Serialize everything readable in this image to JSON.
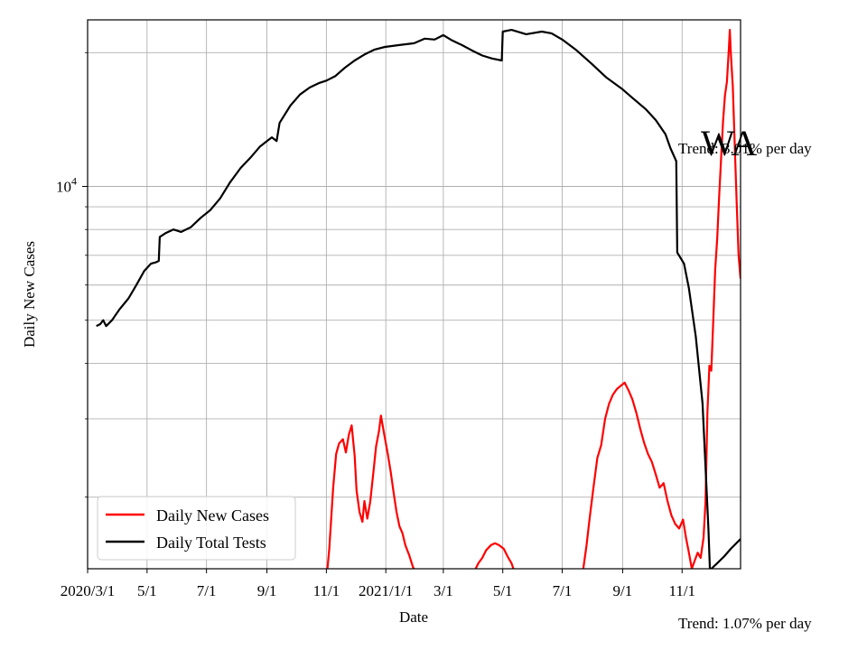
{
  "chart_data": {
    "type": "line",
    "title": "WA",
    "xlabel": "Date",
    "ylabel": "Daily New Cases",
    "yscale": "log",
    "ylim": [
      1380,
      23700
    ],
    "grid": true,
    "legend_position": "lower-left",
    "x_start": "2020-03-01",
    "x_end": "2021-12-31",
    "x_tick_labels": [
      {
        "date": "2020-03-01",
        "label": "2020/3/1"
      },
      {
        "date": "2020-05-01",
        "label": "5/1"
      },
      {
        "date": "2020-07-01",
        "label": "7/1"
      },
      {
        "date": "2020-09-01",
        "label": "9/1"
      },
      {
        "date": "2020-11-01",
        "label": "11/1"
      },
      {
        "date": "2021-01-01",
        "label": "2021/1/1"
      },
      {
        "date": "2021-03-01",
        "label": "3/1"
      },
      {
        "date": "2021-05-01",
        "label": "5/1"
      },
      {
        "date": "2021-07-01",
        "label": "7/1"
      },
      {
        "date": "2021-09-01",
        "label": "9/1"
      },
      {
        "date": "2021-11-01",
        "label": "11/1"
      }
    ],
    "y_tick_labels": [
      {
        "value": 10000,
        "label": "10^4"
      }
    ],
    "y_minor_ticks": [
      2000,
      3000,
      4000,
      5000,
      6000,
      7000,
      8000,
      9000,
      20000
    ],
    "series": [
      {
        "name": "Daily New Cases",
        "color": "#ff0000",
        "points": [
          [
            "2020-11-01",
            1300
          ],
          [
            "2020-11-04",
            1530
          ],
          [
            "2020-11-08",
            2100
          ],
          [
            "2020-11-11",
            2500
          ],
          [
            "2020-11-14",
            2640
          ],
          [
            "2020-11-18",
            2700
          ],
          [
            "2020-11-21",
            2520
          ],
          [
            "2020-11-24",
            2760
          ],
          [
            "2020-11-27",
            2900
          ],
          [
            "2020-11-30",
            2480
          ],
          [
            "2020-12-02",
            2070
          ],
          [
            "2020-12-05",
            1850
          ],
          [
            "2020-12-08",
            1760
          ],
          [
            "2020-12-10",
            1960
          ],
          [
            "2020-12-13",
            1790
          ],
          [
            "2020-12-16",
            1950
          ],
          [
            "2020-12-19",
            2250
          ],
          [
            "2020-12-22",
            2600
          ],
          [
            "2020-12-25",
            2820
          ],
          [
            "2020-12-27",
            3050
          ],
          [
            "2020-12-30",
            2800
          ],
          [
            "2021-01-03",
            2500
          ],
          [
            "2021-01-06",
            2280
          ],
          [
            "2021-01-09",
            2050
          ],
          [
            "2021-01-12",
            1850
          ],
          [
            "2021-01-15",
            1720
          ],
          [
            "2021-01-18",
            1660
          ],
          [
            "2021-01-21",
            1560
          ],
          [
            "2021-01-25",
            1480
          ],
          [
            "2021-01-29",
            1390
          ],
          [
            "2021-02-02",
            1350
          ],
          [
            "2021-04-01",
            1350
          ],
          [
            "2021-04-06",
            1420
          ],
          [
            "2021-04-10",
            1460
          ],
          [
            "2021-04-14",
            1520
          ],
          [
            "2021-04-19",
            1560
          ],
          [
            "2021-04-23",
            1575
          ],
          [
            "2021-04-27",
            1560
          ],
          [
            "2021-05-02",
            1530
          ],
          [
            "2021-05-06",
            1470
          ],
          [
            "2021-05-10",
            1420
          ],
          [
            "2021-05-13",
            1360
          ],
          [
            "2021-07-22",
            1350
          ],
          [
            "2021-07-26",
            1560
          ],
          [
            "2021-07-29",
            1780
          ],
          [
            "2021-08-02",
            2100
          ],
          [
            "2021-08-06",
            2450
          ],
          [
            "2021-08-10",
            2620
          ],
          [
            "2021-08-14",
            3000
          ],
          [
            "2021-08-18",
            3240
          ],
          [
            "2021-08-22",
            3400
          ],
          [
            "2021-08-26",
            3500
          ],
          [
            "2021-08-30",
            3560
          ],
          [
            "2021-09-03",
            3620
          ],
          [
            "2021-09-07",
            3480
          ],
          [
            "2021-09-11",
            3320
          ],
          [
            "2021-09-15",
            3100
          ],
          [
            "2021-09-19",
            2850
          ],
          [
            "2021-09-23",
            2650
          ],
          [
            "2021-09-27",
            2500
          ],
          [
            "2021-10-01",
            2400
          ],
          [
            "2021-10-05",
            2250
          ],
          [
            "2021-10-09",
            2100
          ],
          [
            "2021-10-13",
            2150
          ],
          [
            "2021-10-17",
            1960
          ],
          [
            "2021-10-21",
            1820
          ],
          [
            "2021-10-25",
            1740
          ],
          [
            "2021-10-29",
            1700
          ],
          [
            "2021-11-02",
            1780
          ],
          [
            "2021-11-05",
            1620
          ],
          [
            "2021-11-08",
            1500
          ],
          [
            "2021-11-11",
            1380
          ],
          [
            "2021-11-14",
            1440
          ],
          [
            "2021-11-17",
            1500
          ],
          [
            "2021-11-20",
            1460
          ],
          [
            "2021-11-23",
            1620
          ],
          [
            "2021-11-25",
            1950
          ],
          [
            "2021-11-27",
            3100
          ],
          [
            "2021-11-29",
            3950
          ],
          [
            "2021-12-01",
            3850
          ],
          [
            "2021-12-03",
            5000
          ],
          [
            "2021-12-05",
            6500
          ],
          [
            "2021-12-07",
            7600
          ],
          [
            "2021-12-09",
            9500
          ],
          [
            "2021-12-11",
            11500
          ],
          [
            "2021-12-13",
            14000
          ],
          [
            "2021-12-15",
            16000
          ],
          [
            "2021-12-17",
            17200
          ],
          [
            "2021-12-19",
            20500
          ],
          [
            "2021-12-20",
            22500
          ],
          [
            "2021-12-21",
            20000
          ],
          [
            "2021-12-23",
            16800
          ],
          [
            "2021-12-25",
            12500
          ],
          [
            "2021-12-27",
            9200
          ],
          [
            "2021-12-29",
            7000
          ],
          [
            "2021-12-31",
            6200
          ]
        ]
      },
      {
        "name": "Daily Total Tests",
        "color": "#000000",
        "points": [
          [
            "2020-03-10",
            4850
          ],
          [
            "2020-03-14",
            4900
          ],
          [
            "2020-03-17",
            5000
          ],
          [
            "2020-03-20",
            4850
          ],
          [
            "2020-03-26",
            5000
          ],
          [
            "2020-04-03",
            5300
          ],
          [
            "2020-04-12",
            5600
          ],
          [
            "2020-04-20",
            6000
          ],
          [
            "2020-04-28",
            6450
          ],
          [
            "2020-05-05",
            6700
          ],
          [
            "2020-05-10",
            6750
          ],
          [
            "2020-05-13",
            6800
          ],
          [
            "2020-05-14",
            7700
          ],
          [
            "2020-05-20",
            7850
          ],
          [
            "2020-05-28",
            8000
          ],
          [
            "2020-06-05",
            7900
          ],
          [
            "2020-06-15",
            8100
          ],
          [
            "2020-06-25",
            8500
          ],
          [
            "2020-07-05",
            8850
          ],
          [
            "2020-07-15",
            9400
          ],
          [
            "2020-07-25",
            10200
          ],
          [
            "2020-08-05",
            11000
          ],
          [
            "2020-08-15",
            11600
          ],
          [
            "2020-08-25",
            12300
          ],
          [
            "2020-08-31",
            12600
          ],
          [
            "2020-09-06",
            12900
          ],
          [
            "2020-09-11",
            12650
          ],
          [
            "2020-09-14",
            13900
          ],
          [
            "2020-09-25",
            15200
          ],
          [
            "2020-10-05",
            16100
          ],
          [
            "2020-10-15",
            16700
          ],
          [
            "2020-10-25",
            17100
          ],
          [
            "2020-11-01",
            17300
          ],
          [
            "2020-11-10",
            17700
          ],
          [
            "2020-11-20",
            18500
          ],
          [
            "2020-11-30",
            19200
          ],
          [
            "2020-12-10",
            19800
          ],
          [
            "2020-12-20",
            20300
          ],
          [
            "2020-12-31",
            20600
          ],
          [
            "2021-01-15",
            20800
          ],
          [
            "2021-01-30",
            21000
          ],
          [
            "2021-02-10",
            21500
          ],
          [
            "2021-02-20",
            21400
          ],
          [
            "2021-03-01",
            21900
          ],
          [
            "2021-03-10",
            21300
          ],
          [
            "2021-03-20",
            20800
          ],
          [
            "2021-03-31",
            20200
          ],
          [
            "2021-04-10",
            19700
          ],
          [
            "2021-04-20",
            19400
          ],
          [
            "2021-04-30",
            19200
          ],
          [
            "2021-05-01",
            22300
          ],
          [
            "2021-05-10",
            22500
          ],
          [
            "2021-05-25",
            22000
          ],
          [
            "2021-06-10",
            22300
          ],
          [
            "2021-06-20",
            22100
          ],
          [
            "2021-07-01",
            21400
          ],
          [
            "2021-07-15",
            20300
          ],
          [
            "2021-07-31",
            18900
          ],
          [
            "2021-08-15",
            17600
          ],
          [
            "2021-08-31",
            16600
          ],
          [
            "2021-09-10",
            15900
          ],
          [
            "2021-09-25",
            14900
          ],
          [
            "2021-10-05",
            14100
          ],
          [
            "2021-10-15",
            13100
          ],
          [
            "2021-10-20",
            12200
          ],
          [
            "2021-10-26",
            11400
          ],
          [
            "2021-10-27",
            7100
          ],
          [
            "2021-11-03",
            6700
          ],
          [
            "2021-11-08",
            5900
          ],
          [
            "2021-11-15",
            4600
          ],
          [
            "2021-11-22",
            3250
          ],
          [
            "2021-11-28",
            1700
          ],
          [
            "2021-11-30",
            1300
          ]
        ]
      },
      {
        "name": "",
        "color": "#000000",
        "points": [
          [
            "2021-12-01",
            1380
          ],
          [
            "2021-12-07",
            1420
          ],
          [
            "2021-12-14",
            1470
          ],
          [
            "2021-12-21",
            1530
          ],
          [
            "2021-12-31",
            1610
          ]
        ]
      }
    ],
    "annotations": [
      "Trend: 3.01% per day",
      "Trend: 1.07% per day"
    ]
  }
}
